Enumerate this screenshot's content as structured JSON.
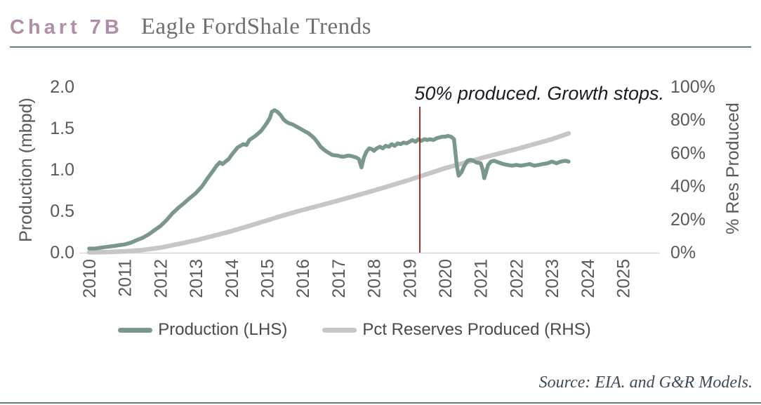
{
  "header": {
    "label": "Chart 7B",
    "title": "Eagle FordShale Trends"
  },
  "legend": {
    "items": [
      {
        "label": "Production (LHS)",
        "color": "#7a9889"
      },
      {
        "label": "Pct Reserves Produced (RHS)",
        "color": "#c6c6c6"
      }
    ]
  },
  "source_note": "Source: EIA. and G&R Models.",
  "colors": {
    "title_mauve": "#b18ea7",
    "rule_teal": "#5e7f71",
    "production_teal": "#7a9889",
    "reserves_gray": "#c6c6c6",
    "marker_red": "#9b1a17",
    "tick_text": "#595959",
    "annotation_text": "#1b1b24",
    "axis_line": "#d9d9d9"
  },
  "chart_data": {
    "type": "line",
    "title": "Eagle FordShale Trends",
    "annotation": {
      "text": "50% produced. Growth stops.",
      "marker_x": 2019.29,
      "marker_color": "#9b1a17"
    },
    "x_axis": {
      "ticks": [
        "2010",
        "2011",
        "2012",
        "2013",
        "2014",
        "2015",
        "2016",
        "2017",
        "2018",
        "2019",
        "2020",
        "2021",
        "2022",
        "2023",
        "2024",
        "2025"
      ],
      "range": [
        2010,
        2026
      ]
    },
    "left_axis": {
      "label": "Production (mbpd)",
      "ticks": [
        "0.0",
        "0.5",
        "1.0",
        "1.5",
        "2.0"
      ],
      "range": [
        0,
        2
      ]
    },
    "right_axis": {
      "label": "% Res Produced",
      "ticks": [
        "0%",
        "20%",
        "40%",
        "60%",
        "80%",
        "100%"
      ],
      "range": [
        0,
        100
      ]
    },
    "legend_position": "bottom",
    "grid": false,
    "series": [
      {
        "name": "Production (LHS)",
        "axis": "left",
        "color": "#7a9889",
        "width": 5.5,
        "data": [
          [
            2010.0,
            0.05
          ],
          [
            2010.17,
            0.05
          ],
          [
            2010.33,
            0.06
          ],
          [
            2010.5,
            0.07
          ],
          [
            2010.67,
            0.08
          ],
          [
            2010.83,
            0.09
          ],
          [
            2011.0,
            0.1
          ],
          [
            2011.17,
            0.12
          ],
          [
            2011.33,
            0.15
          ],
          [
            2011.5,
            0.18
          ],
          [
            2011.67,
            0.22
          ],
          [
            2011.83,
            0.27
          ],
          [
            2012.0,
            0.32
          ],
          [
            2012.17,
            0.39
          ],
          [
            2012.33,
            0.47
          ],
          [
            2012.5,
            0.54
          ],
          [
            2012.67,
            0.6
          ],
          [
            2012.83,
            0.66
          ],
          [
            2013.0,
            0.72
          ],
          [
            2013.17,
            0.8
          ],
          [
            2013.33,
            0.9
          ],
          [
            2013.5,
            1.0
          ],
          [
            2013.58,
            1.05
          ],
          [
            2013.67,
            1.09
          ],
          [
            2013.75,
            1.07
          ],
          [
            2013.83,
            1.1
          ],
          [
            2013.92,
            1.13
          ],
          [
            2014.0,
            1.18
          ],
          [
            2014.17,
            1.27
          ],
          [
            2014.25,
            1.29
          ],
          [
            2014.33,
            1.31
          ],
          [
            2014.42,
            1.3
          ],
          [
            2014.5,
            1.36
          ],
          [
            2014.67,
            1.41
          ],
          [
            2014.83,
            1.47
          ],
          [
            2014.92,
            1.52
          ],
          [
            2015.0,
            1.57
          ],
          [
            2015.08,
            1.63
          ],
          [
            2015.13,
            1.7
          ],
          [
            2015.21,
            1.72
          ],
          [
            2015.29,
            1.7
          ],
          [
            2015.38,
            1.66
          ],
          [
            2015.46,
            1.61
          ],
          [
            2015.54,
            1.58
          ],
          [
            2015.63,
            1.56
          ],
          [
            2015.71,
            1.55
          ],
          [
            2015.83,
            1.52
          ],
          [
            2015.92,
            1.5
          ],
          [
            2016.0,
            1.48
          ],
          [
            2016.08,
            1.46
          ],
          [
            2016.17,
            1.44
          ],
          [
            2016.25,
            1.41
          ],
          [
            2016.33,
            1.38
          ],
          [
            2016.42,
            1.33
          ],
          [
            2016.5,
            1.28
          ],
          [
            2016.58,
            1.25
          ],
          [
            2016.67,
            1.22
          ],
          [
            2016.75,
            1.2
          ],
          [
            2016.83,
            1.18
          ],
          [
            2017.0,
            1.17
          ],
          [
            2017.08,
            1.16
          ],
          [
            2017.17,
            1.16
          ],
          [
            2017.25,
            1.17
          ],
          [
            2017.33,
            1.17
          ],
          [
            2017.42,
            1.16
          ],
          [
            2017.5,
            1.15
          ],
          [
            2017.58,
            1.13
          ],
          [
            2017.65,
            1.03
          ],
          [
            2017.72,
            1.15
          ],
          [
            2017.79,
            1.22
          ],
          [
            2017.87,
            1.26
          ],
          [
            2017.94,
            1.25
          ],
          [
            2018.0,
            1.23
          ],
          [
            2018.08,
            1.26
          ],
          [
            2018.17,
            1.28
          ],
          [
            2018.25,
            1.26
          ],
          [
            2018.33,
            1.29
          ],
          [
            2018.42,
            1.28
          ],
          [
            2018.5,
            1.31
          ],
          [
            2018.58,
            1.29
          ],
          [
            2018.67,
            1.32
          ],
          [
            2018.75,
            1.31
          ],
          [
            2018.83,
            1.33
          ],
          [
            2018.92,
            1.32
          ],
          [
            2019.0,
            1.34
          ],
          [
            2019.08,
            1.36
          ],
          [
            2019.17,
            1.34
          ],
          [
            2019.25,
            1.37
          ],
          [
            2019.33,
            1.35
          ],
          [
            2019.42,
            1.37
          ],
          [
            2019.5,
            1.36
          ],
          [
            2019.58,
            1.37
          ],
          [
            2019.67,
            1.36
          ],
          [
            2019.75,
            1.38
          ],
          [
            2019.83,
            1.39
          ],
          [
            2019.92,
            1.4
          ],
          [
            2020.0,
            1.4
          ],
          [
            2020.08,
            1.41
          ],
          [
            2020.17,
            1.4
          ],
          [
            2020.25,
            1.37
          ],
          [
            2020.33,
            1.05
          ],
          [
            2020.38,
            0.93
          ],
          [
            2020.46,
            0.97
          ],
          [
            2020.54,
            1.05
          ],
          [
            2020.63,
            1.11
          ],
          [
            2020.71,
            1.12
          ],
          [
            2020.79,
            1.11
          ],
          [
            2020.88,
            1.09
          ],
          [
            2021.0,
            1.08
          ],
          [
            2021.06,
            1.0
          ],
          [
            2021.1,
            0.9
          ],
          [
            2021.15,
            0.97
          ],
          [
            2021.21,
            1.06
          ],
          [
            2021.29,
            1.1
          ],
          [
            2021.38,
            1.11
          ],
          [
            2021.5,
            1.09
          ],
          [
            2021.63,
            1.07
          ],
          [
            2021.75,
            1.06
          ],
          [
            2021.88,
            1.05
          ],
          [
            2022.0,
            1.06
          ],
          [
            2022.13,
            1.05
          ],
          [
            2022.25,
            1.06
          ],
          [
            2022.38,
            1.07
          ],
          [
            2022.5,
            1.05
          ],
          [
            2022.63,
            1.06
          ],
          [
            2022.75,
            1.07
          ],
          [
            2022.88,
            1.08
          ],
          [
            2023.0,
            1.1
          ],
          [
            2023.13,
            1.08
          ],
          [
            2023.25,
            1.1
          ],
          [
            2023.38,
            1.11
          ],
          [
            2023.47,
            1.1
          ]
        ]
      },
      {
        "name": "Pct Reserves Produced (RHS)",
        "axis": "right",
        "color": "#c6c6c6",
        "width": 6.5,
        "data": [
          [
            2010.0,
            0.2
          ],
          [
            2010.5,
            0.4
          ],
          [
            2011.0,
            0.8
          ],
          [
            2011.5,
            1.6
          ],
          [
            2012.0,
            3.0
          ],
          [
            2012.5,
            5.2
          ],
          [
            2013.0,
            7.5
          ],
          [
            2013.5,
            10.2
          ],
          [
            2014.0,
            13.0
          ],
          [
            2014.5,
            16.2
          ],
          [
            2015.0,
            19.5
          ],
          [
            2015.5,
            22.8
          ],
          [
            2016.0,
            25.8
          ],
          [
            2016.5,
            28.6
          ],
          [
            2017.0,
            31.5
          ],
          [
            2017.5,
            34.5
          ],
          [
            2018.0,
            37.5
          ],
          [
            2018.5,
            40.7
          ],
          [
            2019.0,
            44.0
          ],
          [
            2019.5,
            47.5
          ],
          [
            2020.0,
            51.0
          ],
          [
            2020.5,
            54.0
          ],
          [
            2021.0,
            57.0
          ],
          [
            2021.5,
            59.8
          ],
          [
            2022.0,
            62.5
          ],
          [
            2022.5,
            65.5
          ],
          [
            2023.0,
            68.5
          ],
          [
            2023.47,
            72.0
          ]
        ]
      }
    ]
  }
}
